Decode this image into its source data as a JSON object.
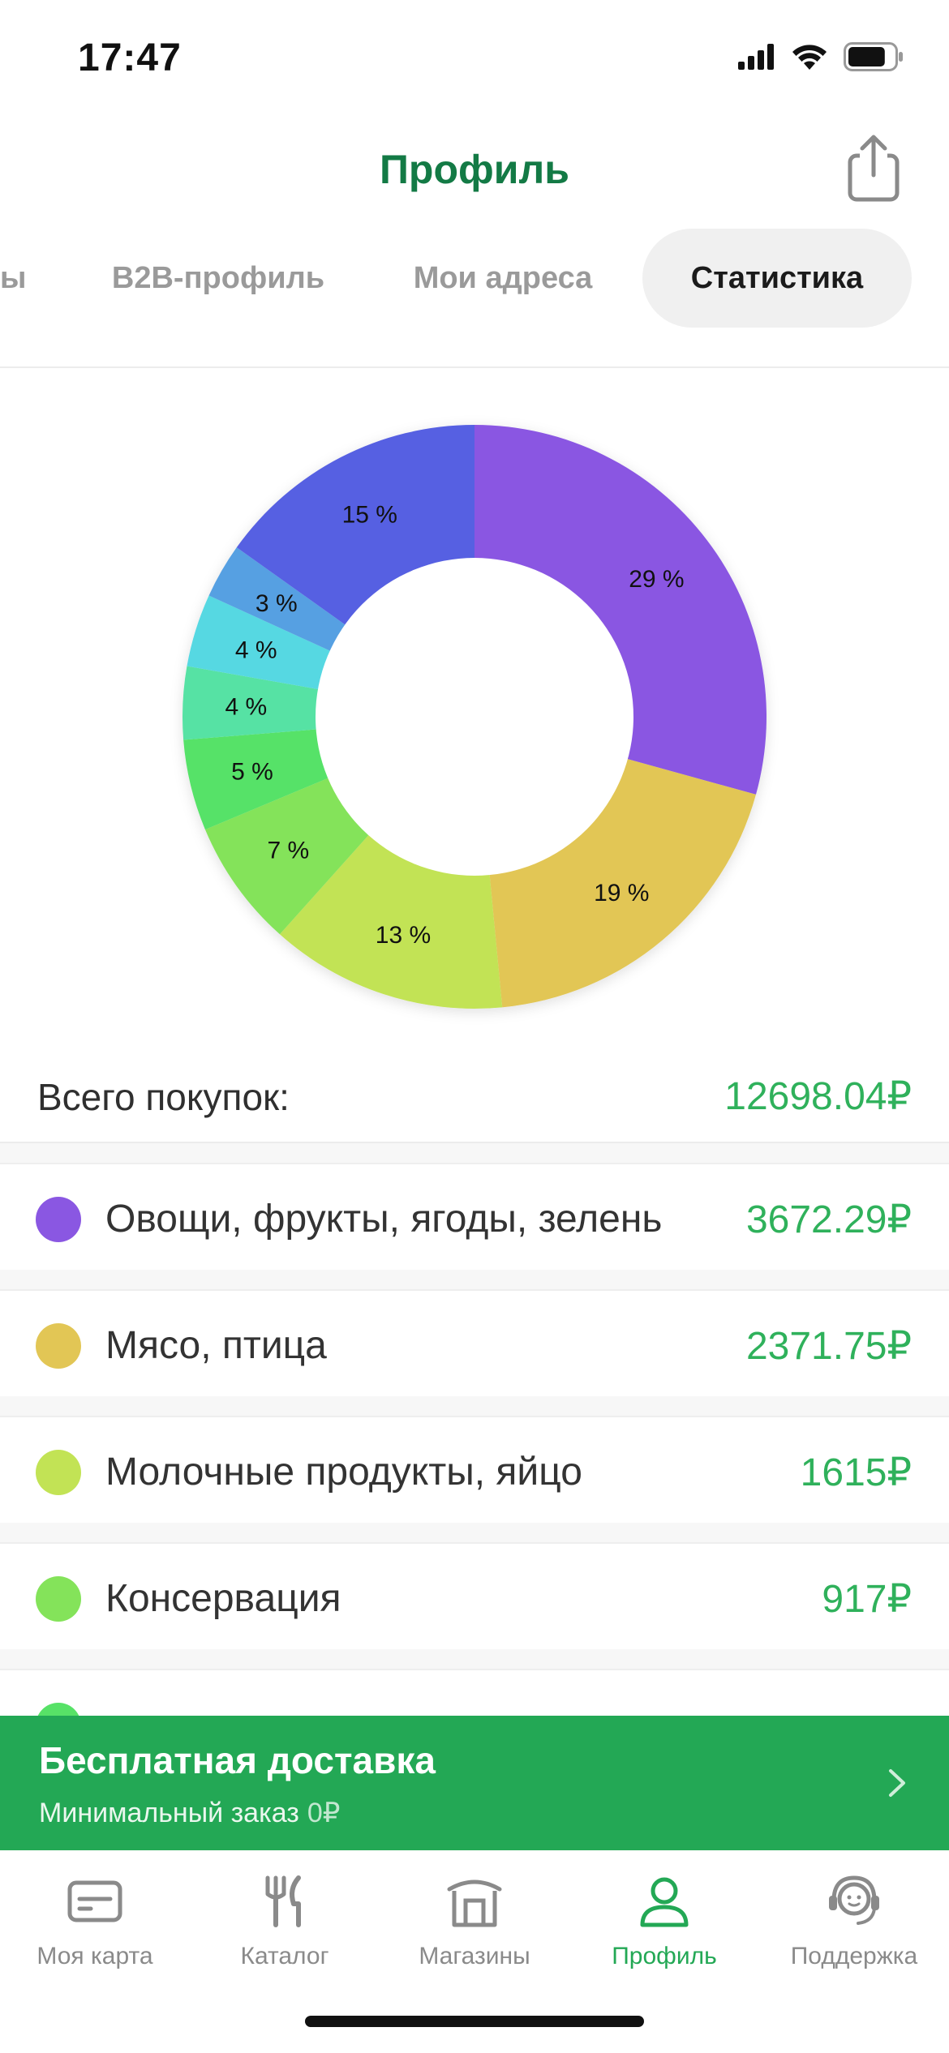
{
  "status_bar": {
    "time": "17:47",
    "battery_level": 0.8
  },
  "header": {
    "title": "Профиль",
    "share_icon": "share-icon"
  },
  "tabs": [
    {
      "label": "ы",
      "active": false
    },
    {
      "label": "B2B-профиль",
      "active": false
    },
    {
      "label": "Мои адреса",
      "active": false
    },
    {
      "label": "Статистика",
      "active": true
    }
  ],
  "chart_data": {
    "type": "pie",
    "donut": true,
    "slices": [
      {
        "label": "29 %",
        "value": 29,
        "color": "#8a57e2"
      },
      {
        "label": "19 %",
        "value": 19,
        "color": "#e2c655"
      },
      {
        "label": "13 %",
        "value": 13,
        "color": "#c2e355"
      },
      {
        "label": "7 %",
        "value": 7,
        "color": "#84e35a"
      },
      {
        "label": "5 %",
        "value": 5,
        "color": "#57e267"
      },
      {
        "label": "4 %",
        "value": 4,
        "color": "#57e2a4"
      },
      {
        "label": "4 %",
        "value": 4,
        "color": "#57d8e2"
      },
      {
        "label": "3 %",
        "value": 3,
        "color": "#57a0e2"
      },
      {
        "label": "15 %",
        "value": 15,
        "color": "#5760e2"
      }
    ]
  },
  "total": {
    "label": "Всего покупок:",
    "value": "12698.04₽"
  },
  "categories": [
    {
      "label": "Овощи, фрукты, ягоды, зелень",
      "value": "3672.29₽",
      "color": "#8a57e2"
    },
    {
      "label": "Мясо, птица",
      "value": "2371.75₽",
      "color": "#e2c655"
    },
    {
      "label": "Молочные продукты, яйцо",
      "value": "1615₽",
      "color": "#c2e355"
    },
    {
      "label": "Консервация",
      "value": "917₽",
      "color": "#84e35a"
    }
  ],
  "delivery": {
    "title": "Бесплатная доставка",
    "subtitle": "Минимальный заказ",
    "min_value": "0₽"
  },
  "bottom_nav": [
    {
      "label": "Моя карта",
      "icon": "card-icon",
      "active": false
    },
    {
      "label": "Каталог",
      "icon": "fork-knife-icon",
      "active": false
    },
    {
      "label": "Магазины",
      "icon": "store-icon",
      "active": false
    },
    {
      "label": "Профиль",
      "icon": "user-icon",
      "active": true
    },
    {
      "label": "Поддержка",
      "icon": "headset-icon",
      "active": false
    }
  ],
  "colors": {
    "accent": "#23a855",
    "title_green": "#137a45",
    "price_green": "#2fb15b"
  }
}
